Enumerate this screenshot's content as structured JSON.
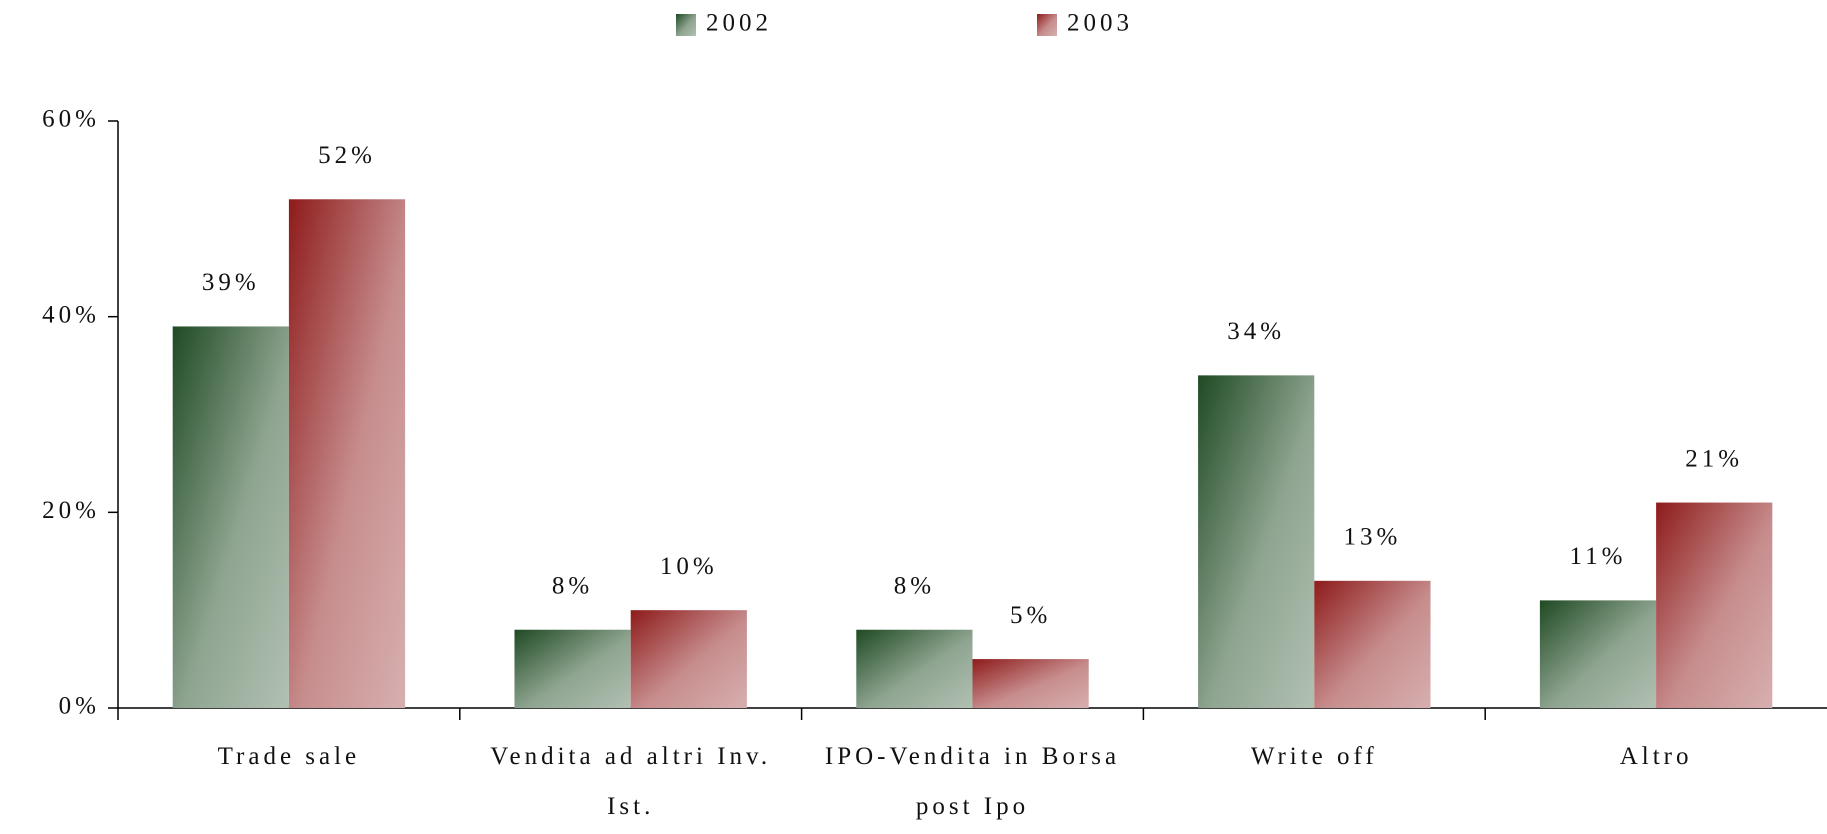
{
  "chart_data": {
    "type": "bar",
    "categories": [
      "Trade sale",
      "Vendita ad altri Inv. Ist.",
      "IPO-Vendita in Borsa post Ipo",
      "Write off",
      "Altro"
    ],
    "series": [
      {
        "name": "2002",
        "color": "#1f4a23",
        "values": [
          39,
          8,
          8,
          34,
          11
        ],
        "value_labels": [
          "39%",
          "8%",
          "8%",
          "34%",
          "11%"
        ]
      },
      {
        "name": "2003",
        "color": "#8e1b1b",
        "values": [
          52,
          10,
          5,
          13,
          21
        ],
        "value_labels": [
          "52%",
          "10%",
          "5%",
          "13%",
          "21%"
        ]
      }
    ],
    "ylim": [
      0,
      60
    ],
    "yticks": [
      {
        "value": 0,
        "label": "0%"
      },
      {
        "value": 20,
        "label": "20%"
      },
      {
        "value": 40,
        "label": "40%"
      },
      {
        "value": 60,
        "label": "60%"
      }
    ],
    "legend": "top"
  }
}
